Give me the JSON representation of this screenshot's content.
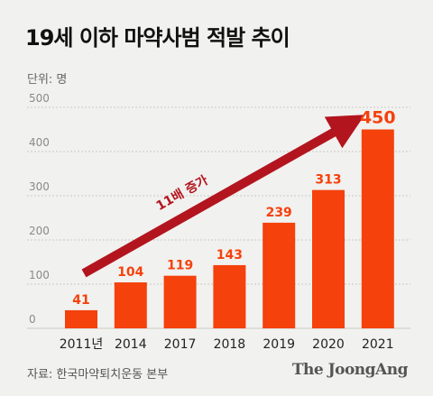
{
  "header": {
    "title": "19세 이하 마약사범 적발 추이",
    "unit": "단위: 명"
  },
  "footer": {
    "source": "자료: 한국마약퇴치운동 본부",
    "brand": "The JoongAng"
  },
  "annotation": {
    "label": "11배 증가"
  },
  "colors": {
    "bar": "#f5410c",
    "label": "#f5410c",
    "arrow": "#b3151e",
    "grid": "#c9c9c6",
    "axis_text": "#8a8a8a"
  },
  "chart_data": {
    "type": "bar",
    "categories": [
      "2011년",
      "2014",
      "2017",
      "2018",
      "2019",
      "2020",
      "2021"
    ],
    "values": [
      41,
      104,
      119,
      143,
      239,
      313,
      450
    ],
    "ylim": [
      0,
      500
    ],
    "yticks": [
      0,
      100,
      200,
      300,
      400,
      500
    ],
    "grid": true,
    "title": "19세 이하 마약사범 적발 추이",
    "xlabel": "",
    "ylabel": "단위: 명"
  }
}
